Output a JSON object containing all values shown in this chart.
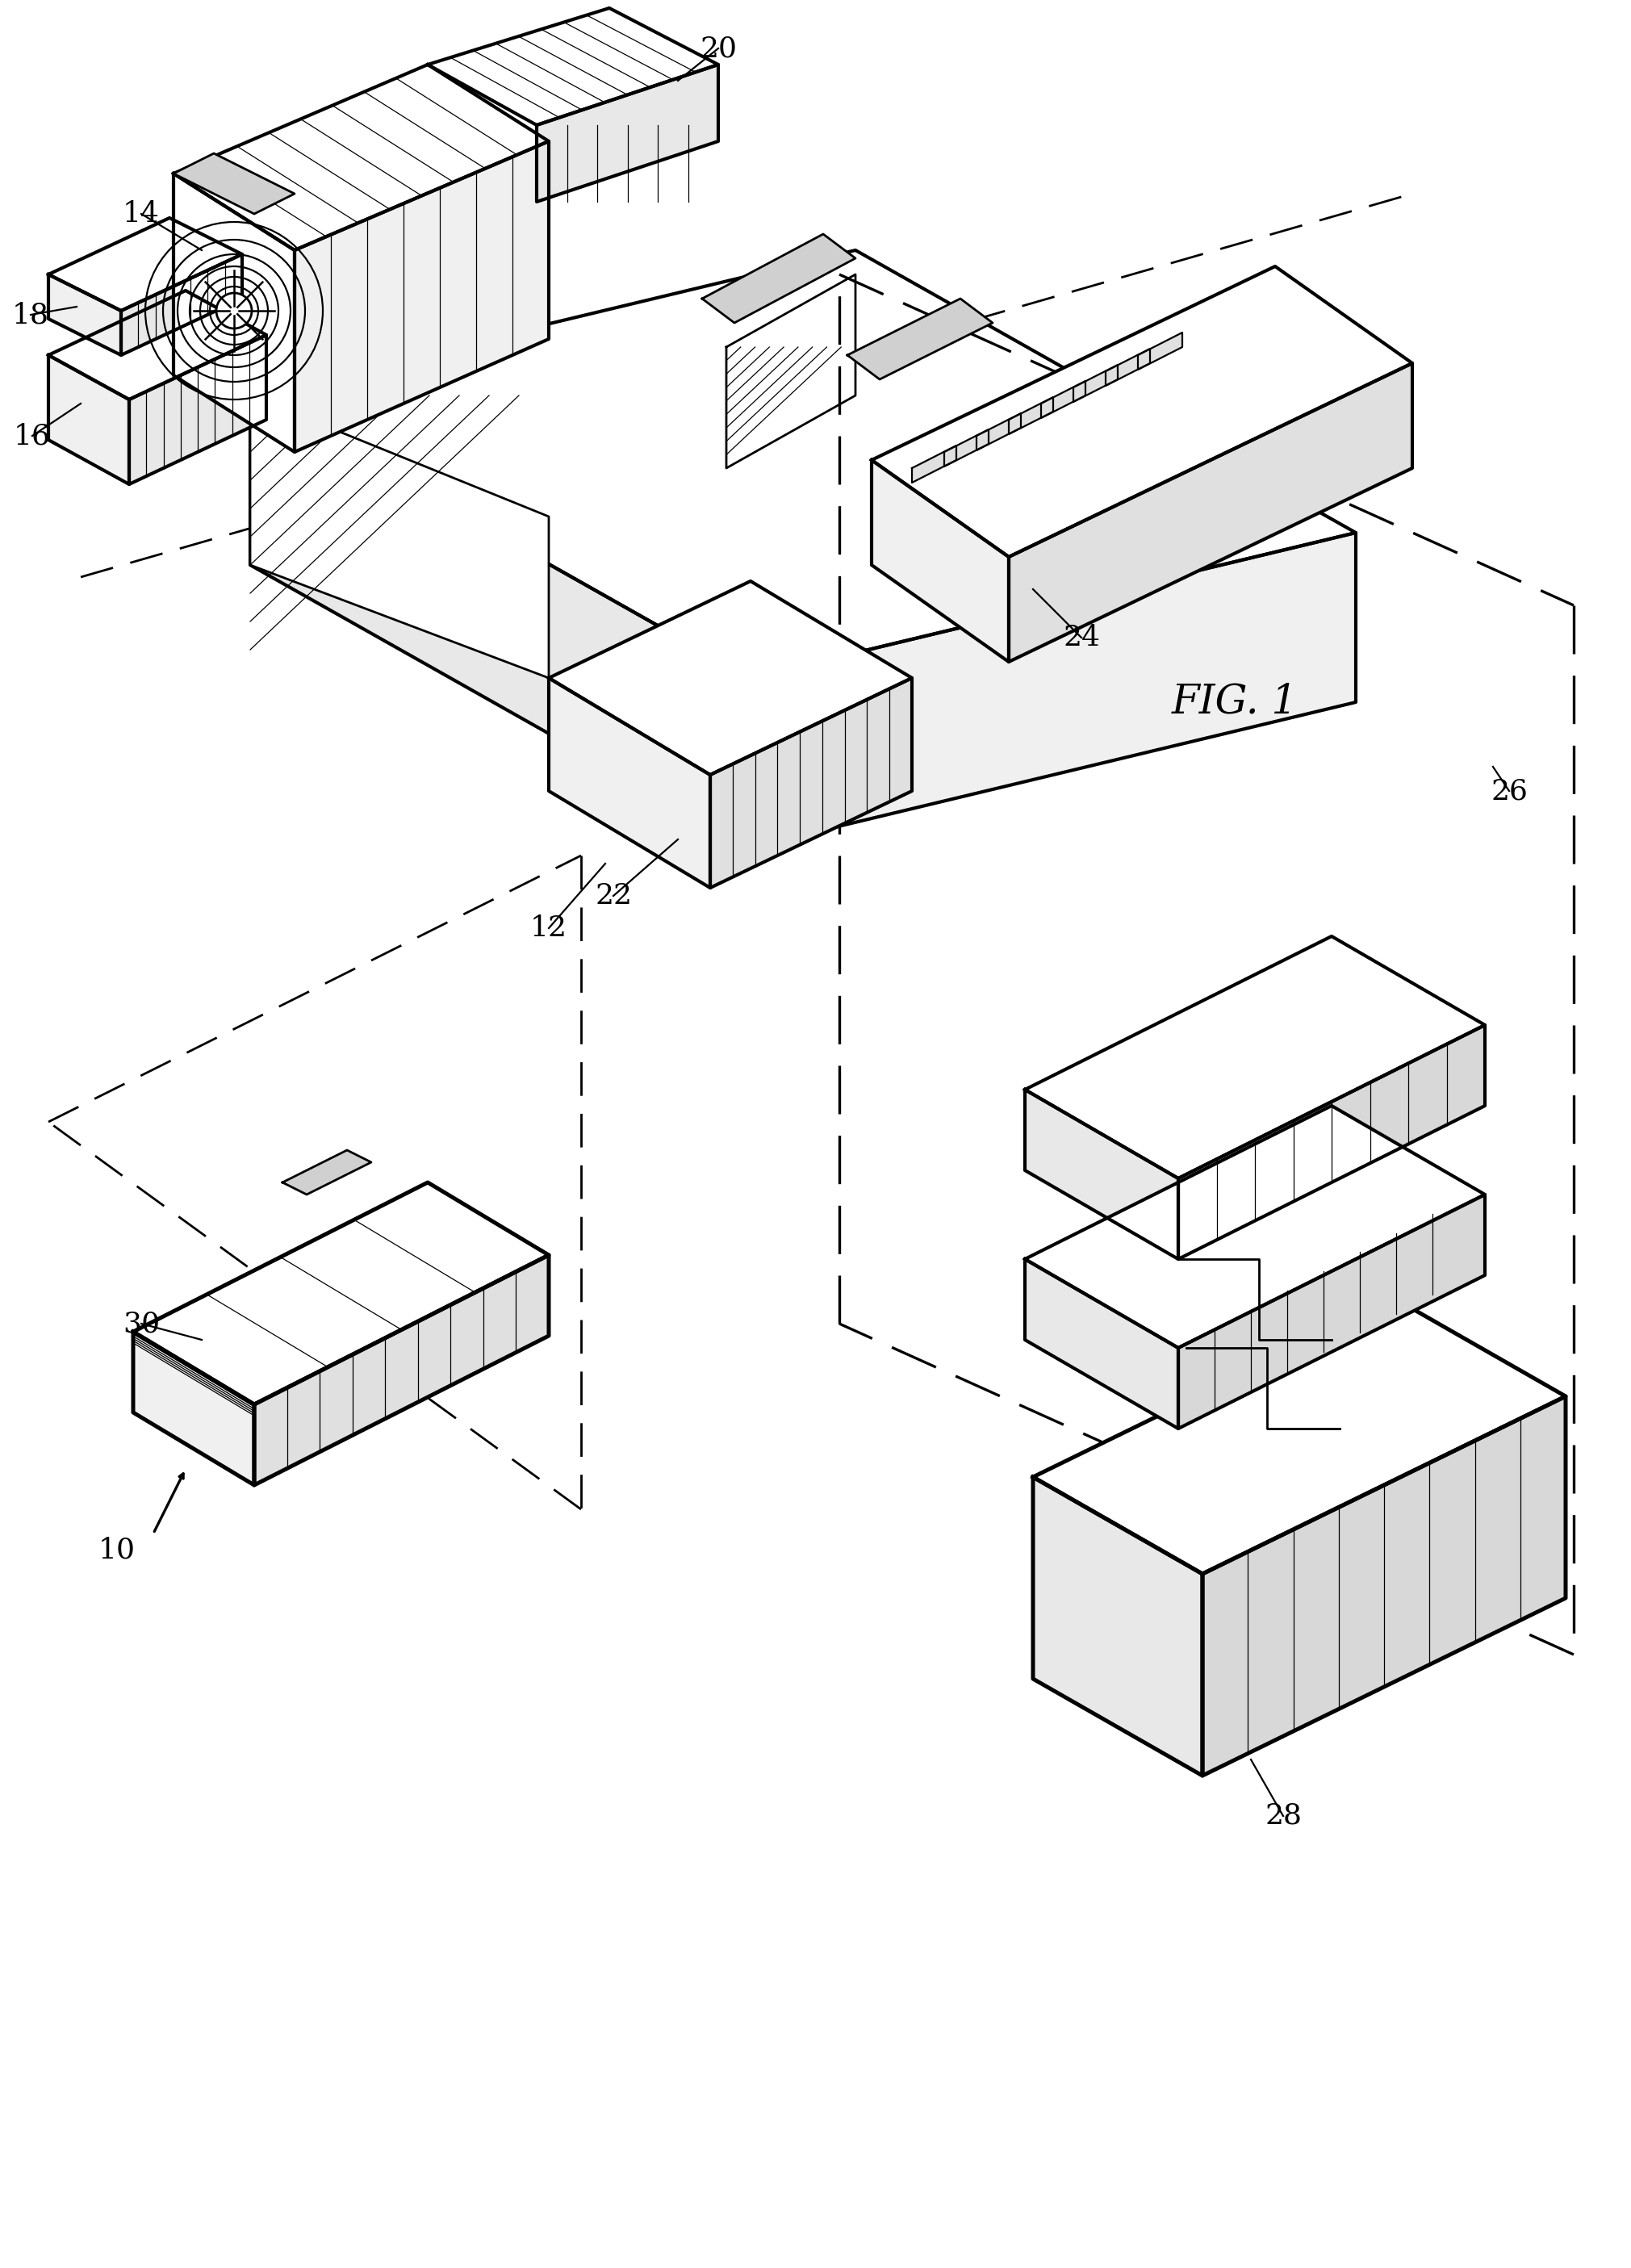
{
  "title": "FIG. 1",
  "background_color": "#ffffff",
  "line_color": "#000000",
  "line_width": 2.0,
  "label_fontsize": 26,
  "title_fontsize": 36
}
